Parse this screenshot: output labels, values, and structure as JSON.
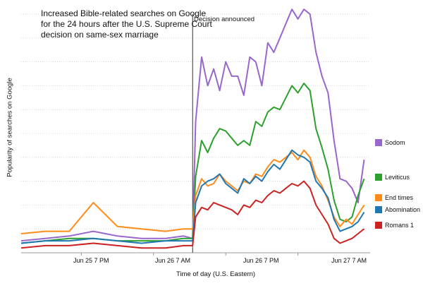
{
  "chart_data": {
    "type": "line",
    "title_lines": [
      "Increased Bible-related searches on Google",
      "for the 24 hours after the U.S. Supreme Court",
      "decision on same-sex marriage"
    ],
    "xlabel": "Time of day (U.S. Eastern)",
    "ylabel": "Popularity of searches on Google",
    "annotation": "Decision announced",
    "annotation_x": 28.5,
    "xlim": [
      0,
      58
    ],
    "ylim": [
      0,
      100
    ],
    "grid": true,
    "x_ticks": [
      {
        "label": "Jun 25 7 PM",
        "x": 10
      },
      {
        "label": "Jun 26 7 AM",
        "x": 22
      },
      {
        "label": "Jun 26 7 PM",
        "x": 34
      },
      {
        "label": "Jun 27 7 AM",
        "x": 46
      }
    ],
    "legend_position": "right",
    "series": [
      {
        "name": "Sodom",
        "color": "#9966cc",
        "x": [
          0,
          4,
          8,
          12,
          16,
          20,
          24,
          27,
          28.5,
          29,
          30,
          31,
          32,
          33,
          34,
          35,
          36,
          37,
          38,
          39,
          40,
          41,
          42,
          43,
          44,
          45,
          46,
          47,
          48,
          49,
          50,
          51,
          52,
          53,
          54,
          55,
          56,
          57
        ],
        "values": [
          5,
          6,
          7,
          9,
          7,
          6,
          6,
          7,
          6,
          55,
          82,
          70,
          77,
          68,
          80,
          74,
          74,
          66,
          82,
          80,
          70,
          88,
          84,
          90,
          96,
          102,
          98,
          102,
          100,
          84,
          74,
          67,
          47,
          31,
          30,
          27,
          21,
          39
        ]
      },
      {
        "name": "Leviticus",
        "color": "#2ca02c",
        "x": [
          0,
          4,
          8,
          12,
          16,
          20,
          24,
          27,
          28.5,
          29,
          30,
          31,
          32,
          33,
          34,
          35,
          36,
          37,
          38,
          39,
          40,
          41,
          42,
          43,
          44,
          45,
          46,
          47,
          48,
          49,
          50,
          51,
          52,
          53,
          54,
          55,
          56,
          57
        ],
        "values": [
          4,
          5,
          6,
          6,
          5,
          5,
          5,
          6,
          6,
          32,
          47,
          42,
          48,
          52,
          51,
          48,
          45,
          47,
          45,
          55,
          53,
          59,
          61,
          60,
          65,
          70,
          67,
          71,
          68,
          52,
          44,
          35,
          22,
          14,
          13,
          15,
          24,
          31
        ]
      },
      {
        "name": "End times",
        "color": "#ff8c1a",
        "x": [
          0,
          4,
          8,
          12,
          16,
          20,
          24,
          27,
          28.5,
          29,
          30,
          31,
          32,
          33,
          34,
          35,
          36,
          37,
          38,
          39,
          40,
          41,
          42,
          43,
          44,
          45,
          46,
          47,
          48,
          49,
          50,
          51,
          52,
          53,
          54,
          55,
          56,
          57
        ],
        "values": [
          8,
          9,
          9,
          21,
          11,
          10,
          9,
          10,
          10,
          24,
          31,
          28,
          29,
          33,
          30,
          28,
          26,
          30,
          29,
          33,
          32,
          36,
          39,
          38,
          40,
          42,
          39,
          43,
          40,
          32,
          28,
          22,
          15,
          11,
          14,
          12,
          16,
          20
        ]
      },
      {
        "name": "Abomination",
        "color": "#1f77b4",
        "x": [
          0,
          4,
          8,
          12,
          16,
          20,
          24,
          27,
          28.5,
          29,
          30,
          31,
          32,
          33,
          34,
          35,
          36,
          37,
          38,
          39,
          40,
          41,
          42,
          43,
          44,
          45,
          46,
          47,
          48,
          49,
          50,
          51,
          52,
          53,
          54,
          55,
          56,
          57
        ],
        "values": [
          4,
          5,
          5,
          6,
          5,
          4,
          5,
          5,
          5,
          21,
          28,
          30,
          31,
          33,
          29,
          27,
          25,
          31,
          29,
          32,
          30,
          34,
          37,
          35,
          39,
          43,
          41,
          40,
          38,
          30,
          27,
          23,
          14,
          9,
          10,
          11,
          13,
          17
        ]
      },
      {
        "name": "Romans 1",
        "color": "#cc2222",
        "x": [
          0,
          4,
          8,
          12,
          16,
          20,
          24,
          27,
          28.5,
          29,
          30,
          31,
          32,
          33,
          34,
          35,
          36,
          37,
          38,
          39,
          40,
          41,
          42,
          43,
          44,
          45,
          46,
          47,
          48,
          49,
          50,
          51,
          52,
          53,
          54,
          55,
          56,
          57
        ],
        "values": [
          2,
          3,
          3,
          4,
          3,
          2,
          2,
          3,
          3,
          15,
          19,
          18,
          21,
          20,
          19,
          18,
          16,
          20,
          19,
          22,
          21,
          24,
          26,
          25,
          27,
          29,
          28,
          30,
          27,
          20,
          16,
          12,
          6,
          4,
          5,
          6,
          8,
          10
        ]
      }
    ]
  }
}
